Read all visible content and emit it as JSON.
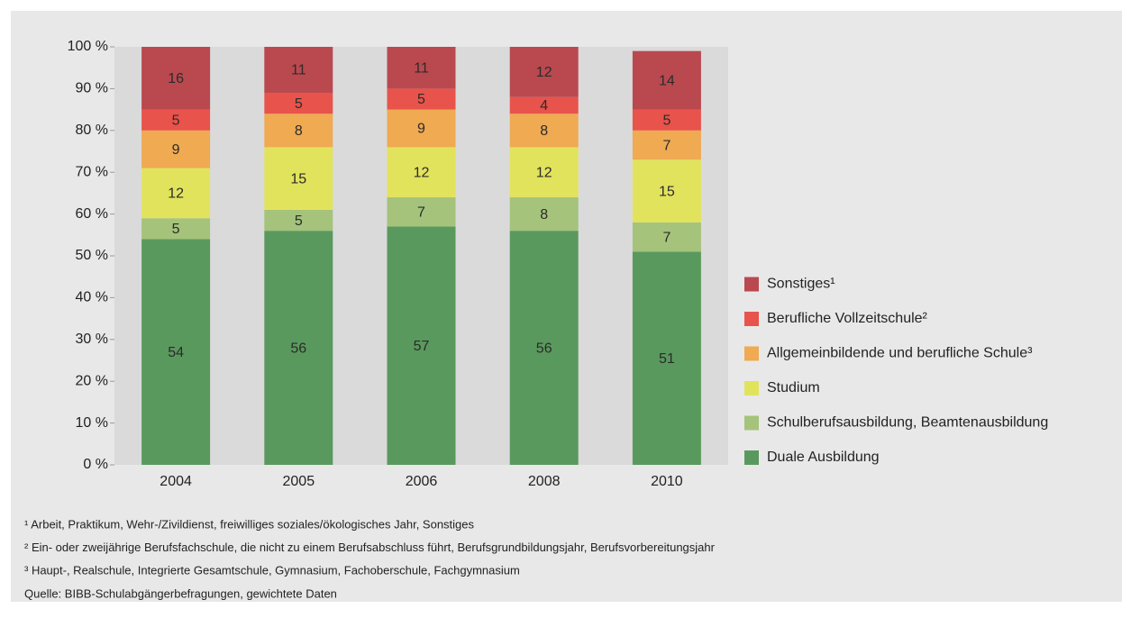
{
  "chart_data": {
    "type": "stacked_bar",
    "categories": [
      "2004",
      "2005",
      "2006",
      "2008",
      "2010"
    ],
    "series": [
      {
        "name": "Duale Ausbildung",
        "color": "#5a995d",
        "values": [
          54,
          56,
          57,
          56,
          51
        ]
      },
      {
        "name": "Schulberufsausbildung, Beamtenausbildung",
        "color": "#a5c37b",
        "values": [
          5,
          5,
          7,
          8,
          7
        ]
      },
      {
        "name": "Studium",
        "color": "#e2e35d",
        "values": [
          12,
          15,
          12,
          12,
          15
        ]
      },
      {
        "name": "Allgemeinbildende und berufliche Schule³",
        "color": "#efaa52",
        "values": [
          9,
          8,
          9,
          8,
          7
        ]
      },
      {
        "name": "Berufliche Vollzeitschule²",
        "color": "#e8534b",
        "values": [
          5,
          5,
          5,
          4,
          5
        ]
      },
      {
        "name": "Sonstiges¹",
        "color": "#b9494f",
        "values": [
          16,
          11,
          11,
          12,
          14
        ]
      }
    ],
    "ylim": [
      0,
      100
    ],
    "yticks": [
      {
        "value": 0,
        "label": "0 %"
      },
      {
        "value": 10,
        "label": "10 %"
      },
      {
        "value": 20,
        "label": "20 %"
      },
      {
        "value": 30,
        "label": "30 %"
      },
      {
        "value": 40,
        "label": "40 %"
      },
      {
        "value": 50,
        "label": "50 %"
      },
      {
        "value": 60,
        "label": "60 %"
      },
      {
        "value": 70,
        "label": "70 %"
      },
      {
        "value": 80,
        "label": "80 %"
      },
      {
        "value": 90,
        "label": "90 %"
      },
      {
        "value": 100,
        "label": "100 %"
      }
    ],
    "legend": "right",
    "footnotes": [
      "¹ Arbeit, Praktikum, Wehr-/Zivildienst, freiwilliges soziales/ökologisches Jahr, Sonstiges",
      "² Ein- oder zweijährige Berufsfachschule, die nicht zu einem Berufsabschluss führt, Berufsgrundbildungsjahr, Berufsvorbereitungsjahr",
      "³ Haupt-, Realschule, Integrierte Gesamtschule, Gymnasium, Fachoberschule, Fachgymnasium"
    ],
    "source": "Quelle: BIBB-Schulabgängerbefragungen, gewichtete Daten"
  }
}
